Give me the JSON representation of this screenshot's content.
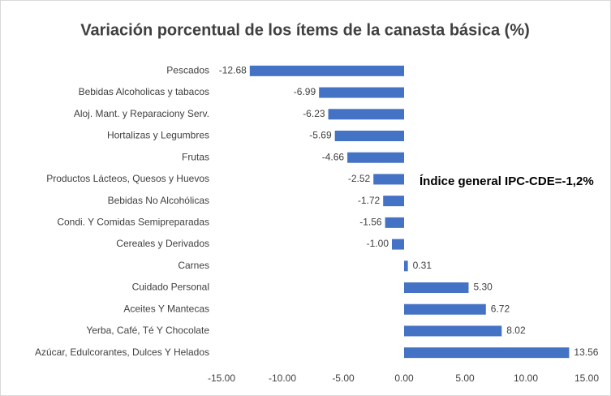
{
  "chart_data": {
    "type": "barh",
    "title": "Variación porcentual de los ítems de la canasta básica (%)",
    "annotation": "Índice general IPC-CDE=-1,2%",
    "categories": [
      "Pescados",
      "Bebidas Alcoholicas y tabacos",
      "Aloj. Mant. y Reparaciony Serv.",
      "Hortalizas y Legumbres",
      "Frutas",
      "Productos Lácteos, Quesos y Huevos",
      "Bebidas No Alcohólicas",
      "Condi. Y Comidas Semipreparadas",
      "Cereales y Derivados",
      "Carnes",
      "Cuidado Personal",
      "Aceites Y Mantecas",
      "Yerba, Café, Té Y Chocolate",
      "Azúcar, Edulcorantes, Dulces Y Helados"
    ],
    "values": [
      -12.68,
      -6.99,
      -6.23,
      -5.69,
      -4.66,
      -2.52,
      -1.72,
      -1.56,
      -1.0,
      0.31,
      5.3,
      6.72,
      8.02,
      13.56
    ],
    "value_labels": [
      "-12.68",
      "-6.99",
      "-6.23",
      "-5.69",
      "-4.66",
      "-2.52",
      "-1.72",
      "-1.56",
      "-1.00",
      "0.31",
      "5.30",
      "6.72",
      "8.02",
      "13.56"
    ],
    "color": "#4472c4",
    "xlim": [
      -15,
      15
    ],
    "xticks": [
      {
        "value": -15,
        "label": "-15.00"
      },
      {
        "value": -10,
        "label": "-10.00"
      },
      {
        "value": -5,
        "label": "-5.00"
      },
      {
        "value": 0,
        "label": "0.00"
      },
      {
        "value": 5,
        "label": "5.00"
      },
      {
        "value": 10,
        "label": "10.00"
      },
      {
        "value": 15,
        "label": "15.00"
      }
    ],
    "grid": false
  }
}
